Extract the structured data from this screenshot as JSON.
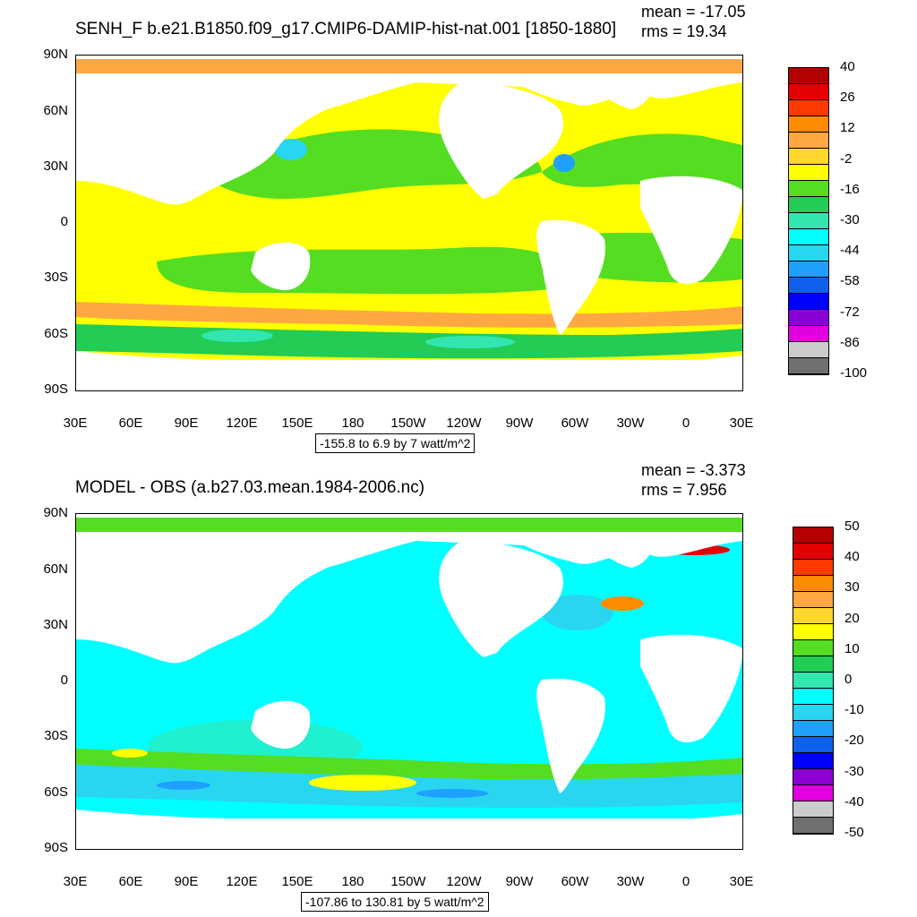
{
  "panels": [
    {
      "title": "SENH_F b.e21.B1850.f09_g17.CMIP6-DAMIP-hist-nat.001 [1850-1880]",
      "mean": "mean = -17.05",
      "rms": "rms = 19.34",
      "range_label": "-155.8 to 6.9 by 7 watt/m^2",
      "colorbar": {
        "labels": [
          "40",
          "26",
          "12",
          "-2",
          "-16",
          "-30",
          "-44",
          "-58",
          "-72",
          "-86",
          "-100"
        ],
        "colors": [
          "#b40000",
          "#e30000",
          "#ff3a00",
          "#ff8c00",
          "#ffa742",
          "#ffd62e",
          "#ffff00",
          "#55dd22",
          "#22cc55",
          "#33e6b0",
          "#00ffff",
          "#29d6f0",
          "#1ea0ff",
          "#1060ee",
          "#0000ff",
          "#8a00d4",
          "#e000e0",
          "#cccccc",
          "#707070"
        ]
      }
    },
    {
      "title": "MODEL - OBS (a.b27.03.mean.1984-2006.nc)",
      "mean": "mean = -3.373",
      "rms": "rms = 7.956",
      "range_label": "-107.86 to 130.81 by 5 watt/m^2",
      "colorbar": {
        "labels": [
          "50",
          "40",
          "30",
          "20",
          "10",
          "0",
          "-10",
          "-20",
          "-30",
          "-40",
          "-50"
        ],
        "colors": [
          "#b40000",
          "#e30000",
          "#ff3a00",
          "#ff8c00",
          "#ffa742",
          "#ffd62e",
          "#ffff00",
          "#55dd22",
          "#22cc55",
          "#33e6b0",
          "#00ffff",
          "#29d6f0",
          "#1ea0ff",
          "#1060ee",
          "#0000ff",
          "#8a00d4",
          "#e000e0",
          "#cccccc",
          "#707070"
        ]
      }
    }
  ],
  "axes": {
    "lat_labels": [
      "90N",
      "60N",
      "30N",
      "0",
      "30S",
      "60S",
      "90S"
    ],
    "lon_labels": [
      "30E",
      "60E",
      "90E",
      "120E",
      "150E",
      "180",
      "150W",
      "120W",
      "90W",
      "60W",
      "30W",
      "0",
      "30E"
    ]
  }
}
